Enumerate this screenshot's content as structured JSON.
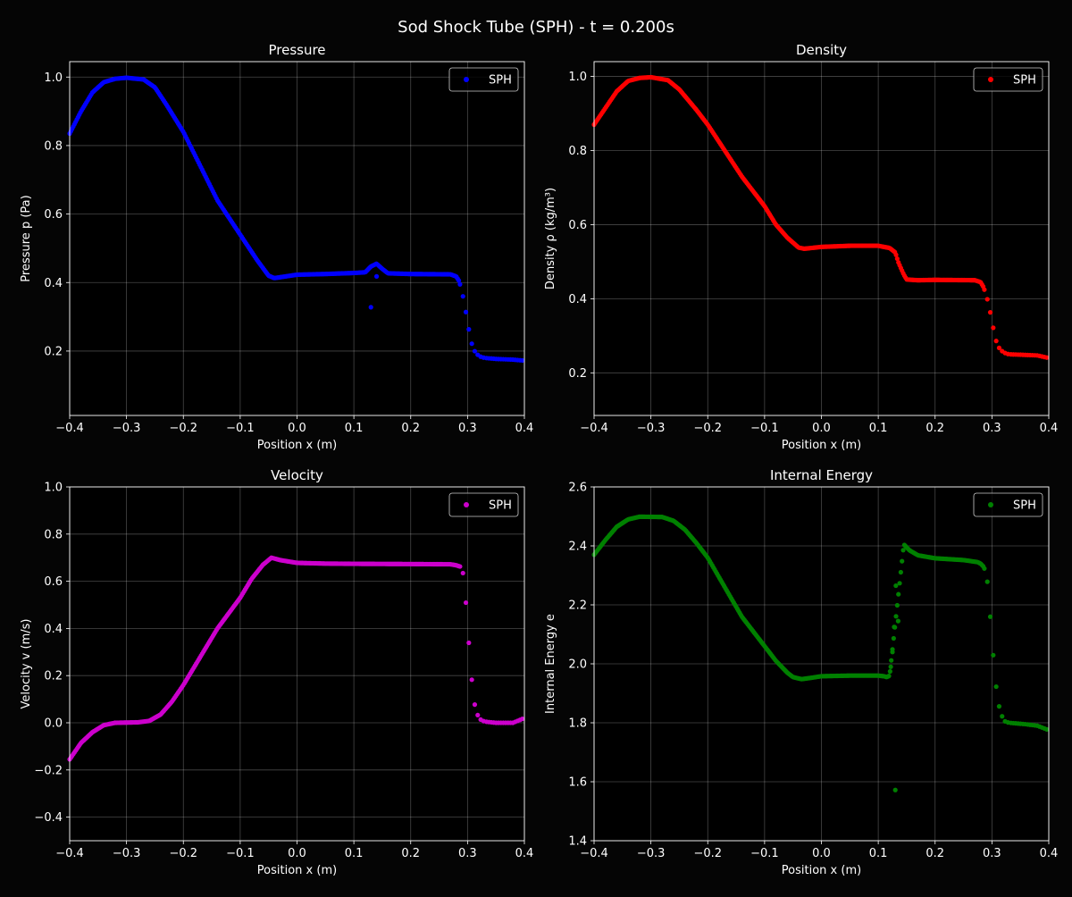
{
  "suptitle": "Sod Shock Tube (SPH) - t = 0.200s",
  "chart_data": [
    {
      "type": "scatter",
      "title": "Pressure",
      "xlabel": "Position x (m)",
      "ylabel": "Pressure p (Pa)",
      "xlim": [
        -0.4,
        0.4
      ],
      "ylim": [
        0.012,
        1.045
      ],
      "xticks": [
        -0.4,
        -0.3,
        -0.2,
        -0.1,
        0.0,
        0.1,
        0.2,
        0.3,
        0.4
      ],
      "xtick_labels": [
        "−0.4",
        "−0.3",
        "−0.2",
        "−0.1",
        "0.0",
        "0.1",
        "0.2",
        "0.3",
        "0.4"
      ],
      "yticks": [
        0.2,
        0.4,
        0.6,
        0.8,
        1.0
      ],
      "ytick_labels": [
        "0.2",
        "0.4",
        "0.6",
        "0.8",
        "1.0"
      ],
      "grid": true,
      "legend": "top-right",
      "series": [
        {
          "name": "SPH",
          "color": "#0000ff",
          "curve": [
            [
              -0.4,
              0.835
            ],
            [
              -0.38,
              0.9
            ],
            [
              -0.36,
              0.955
            ],
            [
              -0.34,
              0.985
            ],
            [
              -0.32,
              0.995
            ],
            [
              -0.3,
              0.998
            ],
            [
              -0.27,
              0.993
            ],
            [
              -0.25,
              0.97
            ],
            [
              -0.23,
              0.92
            ],
            [
              -0.2,
              0.84
            ],
            [
              -0.17,
              0.74
            ],
            [
              -0.14,
              0.64
            ],
            [
              -0.1,
              0.54
            ],
            [
              -0.07,
              0.465
            ],
            [
              -0.05,
              0.42
            ],
            [
              -0.04,
              0.413
            ],
            [
              -0.02,
              0.418
            ],
            [
              0.0,
              0.423
            ],
            [
              0.05,
              0.425
            ],
            [
              0.1,
              0.428
            ],
            [
              0.12,
              0.43
            ],
            [
              0.13,
              0.447
            ],
            [
              0.14,
              0.455
            ],
            [
              0.15,
              0.44
            ],
            [
              0.16,
              0.427
            ],
            [
              0.2,
              0.425
            ],
            [
              0.27,
              0.424
            ],
            [
              0.28,
              0.418
            ],
            [
              0.285,
              0.405
            ],
            [
              0.29,
              0.375
            ],
            [
              0.295,
              0.335
            ],
            [
              0.3,
              0.285
            ],
            [
              0.305,
              0.238
            ],
            [
              0.31,
              0.205
            ],
            [
              0.32,
              0.185
            ],
            [
              0.33,
              0.18
            ],
            [
              0.35,
              0.177
            ],
            [
              0.38,
              0.175
            ],
            [
              0.4,
              0.172
            ]
          ],
          "extra_points": [
            [
              0.13,
              0.328
            ],
            [
              0.14,
              0.418
            ]
          ]
        }
      ]
    },
    {
      "type": "scatter",
      "title": "Density",
      "xlabel": "Position x (m)",
      "ylabel": "Density ρ (kg/m³)",
      "xlim": [
        -0.4,
        0.4
      ],
      "ylim": [
        0.085,
        1.04
      ],
      "xticks": [
        -0.4,
        -0.3,
        -0.2,
        -0.1,
        0.0,
        0.1,
        0.2,
        0.3,
        0.4
      ],
      "xtick_labels": [
        "−0.4",
        "−0.3",
        "−0.2",
        "−0.1",
        "0.0",
        "0.1",
        "0.2",
        "0.3",
        "0.4"
      ],
      "yticks": [
        0.2,
        0.4,
        0.6,
        0.8,
        1.0
      ],
      "ytick_labels": [
        "0.2",
        "0.4",
        "0.6",
        "0.8",
        "1.0"
      ],
      "grid": true,
      "legend": "top-right",
      "series": [
        {
          "name": "SPH",
          "color": "#ff0000",
          "curve": [
            [
              -0.4,
              0.87
            ],
            [
              -0.38,
              0.915
            ],
            [
              -0.36,
              0.96
            ],
            [
              -0.34,
              0.988
            ],
            [
              -0.32,
              0.996
            ],
            [
              -0.3,
              0.998
            ],
            [
              -0.27,
              0.99
            ],
            [
              -0.25,
              0.965
            ],
            [
              -0.22,
              0.91
            ],
            [
              -0.2,
              0.87
            ],
            [
              -0.17,
              0.8
            ],
            [
              -0.14,
              0.73
            ],
            [
              -0.1,
              0.65
            ],
            [
              -0.08,
              0.6
            ],
            [
              -0.06,
              0.565
            ],
            [
              -0.04,
              0.538
            ],
            [
              -0.03,
              0.535
            ],
            [
              0.0,
              0.54
            ],
            [
              0.05,
              0.543
            ],
            [
              0.1,
              0.543
            ],
            [
              0.12,
              0.537
            ],
            [
              0.13,
              0.525
            ],
            [
              0.135,
              0.5
            ],
            [
              0.14,
              0.482
            ],
            [
              0.145,
              0.465
            ],
            [
              0.15,
              0.452
            ],
            [
              0.17,
              0.45
            ],
            [
              0.2,
              0.451
            ],
            [
              0.27,
              0.45
            ],
            [
              0.28,
              0.445
            ],
            [
              0.285,
              0.432
            ],
            [
              0.29,
              0.41
            ],
            [
              0.295,
              0.38
            ],
            [
              0.3,
              0.34
            ],
            [
              0.305,
              0.3
            ],
            [
              0.31,
              0.272
            ],
            [
              0.32,
              0.255
            ],
            [
              0.33,
              0.25
            ],
            [
              0.35,
              0.249
            ],
            [
              0.38,
              0.247
            ],
            [
              0.4,
              0.24
            ]
          ],
          "extra_points": []
        }
      ]
    },
    {
      "type": "scatter",
      "title": "Velocity",
      "xlabel": "Position x (m)",
      "ylabel": "Velocity v (m/s)",
      "xlim": [
        -0.4,
        0.4
      ],
      "ylim": [
        -0.5,
        1.0
      ],
      "xticks": [
        -0.4,
        -0.3,
        -0.2,
        -0.1,
        0.0,
        0.1,
        0.2,
        0.3,
        0.4
      ],
      "xtick_labels": [
        "−0.4",
        "−0.3",
        "−0.2",
        "−0.1",
        "0.0",
        "0.1",
        "0.2",
        "0.3",
        "0.4"
      ],
      "yticks": [
        -0.4,
        -0.2,
        0.0,
        0.2,
        0.4,
        0.6,
        0.8,
        1.0
      ],
      "ytick_labels": [
        "−0.4",
        "−0.2",
        "0.0",
        "0.2",
        "0.4",
        "0.6",
        "0.8",
        "1.0"
      ],
      "grid": true,
      "legend": "top-right",
      "series": [
        {
          "name": "SPH",
          "color": "#cc00cc",
          "curve": [
            [
              -0.4,
              -0.155
            ],
            [
              -0.39,
              -0.12
            ],
            [
              -0.38,
              -0.085
            ],
            [
              -0.36,
              -0.04
            ],
            [
              -0.34,
              -0.01
            ],
            [
              -0.32,
              0.0
            ],
            [
              -0.28,
              0.002
            ],
            [
              -0.26,
              0.008
            ],
            [
              -0.24,
              0.035
            ],
            [
              -0.22,
              0.09
            ],
            [
              -0.2,
              0.16
            ],
            [
              -0.17,
              0.28
            ],
            [
              -0.14,
              0.4
            ],
            [
              -0.1,
              0.53
            ],
            [
              -0.08,
              0.61
            ],
            [
              -0.06,
              0.67
            ],
            [
              -0.045,
              0.7
            ],
            [
              -0.03,
              0.69
            ],
            [
              0.0,
              0.678
            ],
            [
              0.05,
              0.675
            ],
            [
              0.1,
              0.674
            ],
            [
              0.2,
              0.673
            ],
            [
              0.27,
              0.672
            ],
            [
              0.28,
              0.668
            ],
            [
              0.29,
              0.66
            ],
            [
              0.293,
              0.62
            ],
            [
              0.296,
              0.545
            ],
            [
              0.3,
              0.415
            ],
            [
              0.305,
              0.25
            ],
            [
              0.31,
              0.115
            ],
            [
              0.315,
              0.045
            ],
            [
              0.322,
              0.015
            ],
            [
              0.33,
              0.005
            ],
            [
              0.35,
              0.0
            ],
            [
              0.38,
              0.0
            ],
            [
              0.4,
              0.02
            ]
          ],
          "extra_points": []
        }
      ]
    },
    {
      "type": "scatter",
      "title": "Internal Energy",
      "xlabel": "Position x (m)",
      "ylabel": "Internal Energy e",
      "xlim": [
        -0.4,
        0.4
      ],
      "ylim": [
        1.4,
        2.6
      ],
      "xticks": [
        -0.4,
        -0.3,
        -0.2,
        -0.1,
        0.0,
        0.1,
        0.2,
        0.3,
        0.4
      ],
      "xtick_labels": [
        "−0.4",
        "−0.3",
        "−0.2",
        "−0.1",
        "0.0",
        "0.1",
        "0.2",
        "0.3",
        "0.4"
      ],
      "yticks": [
        1.4,
        1.6,
        1.8,
        2.0,
        2.2,
        2.4,
        2.6
      ],
      "ytick_labels": [
        "1.4",
        "1.6",
        "1.8",
        "2.0",
        "2.2",
        "2.4",
        "2.6"
      ],
      "grid": true,
      "legend": "top-right",
      "series": [
        {
          "name": "SPH",
          "color": "#008000",
          "curve": [
            [
              -0.4,
              2.37
            ],
            [
              -0.38,
              2.42
            ],
            [
              -0.36,
              2.465
            ],
            [
              -0.34,
              2.49
            ],
            [
              -0.32,
              2.499
            ],
            [
              -0.28,
              2.498
            ],
            [
              -0.26,
              2.485
            ],
            [
              -0.24,
              2.455
            ],
            [
              -0.22,
              2.41
            ],
            [
              -0.2,
              2.36
            ],
            [
              -0.17,
              2.26
            ],
            [
              -0.14,
              2.16
            ],
            [
              -0.12,
              2.11
            ],
            [
              -0.1,
              2.06
            ],
            [
              -0.08,
              2.01
            ],
            [
              -0.06,
              1.97
            ],
            [
              -0.05,
              1.955
            ],
            [
              -0.035,
              1.948
            ],
            [
              -0.02,
              1.952
            ],
            [
              0.0,
              1.958
            ],
            [
              0.05,
              1.96
            ],
            [
              0.1,
              1.96
            ],
            [
              0.11,
              1.958
            ],
            [
              0.115,
              1.955
            ],
            [
              0.12,
              1.96
            ],
            [
              0.145,
              2.405
            ],
            [
              0.155,
              2.385
            ],
            [
              0.17,
              2.368
            ],
            [
              0.2,
              2.358
            ],
            [
              0.25,
              2.352
            ],
            [
              0.275,
              2.345
            ],
            [
              0.28,
              2.34
            ],
            [
              0.285,
              2.33
            ],
            [
              0.29,
              2.31
            ],
            [
              0.293,
              2.26
            ],
            [
              0.296,
              2.19
            ],
            [
              0.3,
              2.08
            ],
            [
              0.305,
              1.97
            ],
            [
              0.31,
              1.875
            ],
            [
              0.317,
              1.825
            ],
            [
              0.323,
              1.805
            ],
            [
              0.33,
              1.8
            ],
            [
              0.36,
              1.795
            ],
            [
              0.38,
              1.79
            ],
            [
              0.4,
              1.775
            ]
          ],
          "extra_points": [
            [
              0.122,
              1.99
            ],
            [
              0.125,
              2.04
            ],
            [
              0.128,
              2.125
            ],
            [
              0.131,
              2.265
            ],
            [
              0.135,
              2.145
            ],
            [
              0.13,
              1.572
            ]
          ]
        }
      ]
    }
  ]
}
